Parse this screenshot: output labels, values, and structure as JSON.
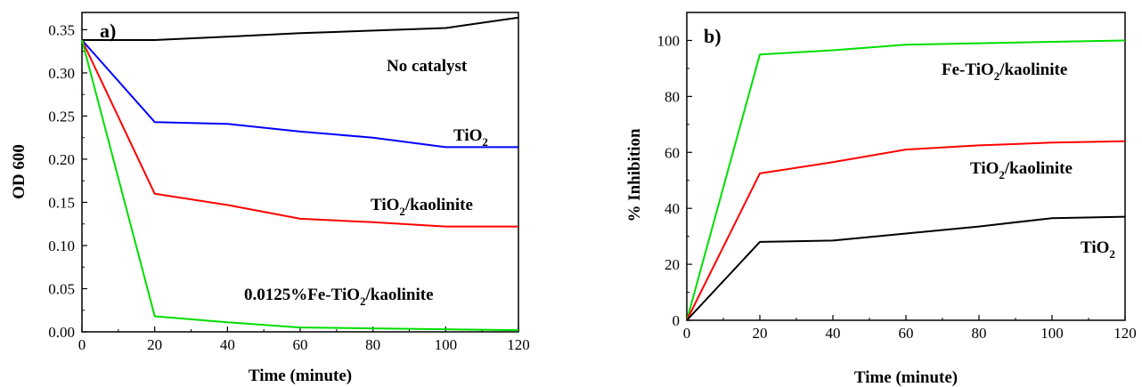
{
  "chart_data": [
    {
      "type": "line",
      "panel_label": "a)",
      "xlabel": "Time (minute)",
      "ylabel": "OD 600",
      "xlim": [
        0,
        120
      ],
      "ylim": [
        0,
        0.37
      ],
      "x_ticks": [
        "0",
        "20",
        "40",
        "60",
        "80",
        "100",
        "120"
      ],
      "y_ticks": [
        "0.00",
        "0.05",
        "0.10",
        "0.15",
        "0.20",
        "0.25",
        "0.30",
        "0.35"
      ],
      "grid": false,
      "series": [
        {
          "name": "No catalyst",
          "color": "#000000",
          "points": [
            [
              0,
              0.338
            ],
            [
              20,
              0.338
            ],
            [
              40,
              0.342
            ],
            [
              60,
              0.346
            ],
            [
              80,
              0.349
            ],
            [
              100,
              0.352
            ],
            [
              120,
              0.364
            ]
          ]
        },
        {
          "name": "TiO2",
          "color": "#0000ff",
          "points": [
            [
              0,
              0.338
            ],
            [
              20,
              0.243
            ],
            [
              40,
              0.241
            ],
            [
              60,
              0.232
            ],
            [
              80,
              0.225
            ],
            [
              100,
              0.214
            ],
            [
              120,
              0.214
            ]
          ]
        },
        {
          "name": "TiO2/kaolinite",
          "color": "#ff0000",
          "points": [
            [
              0,
              0.338
            ],
            [
              20,
              0.16
            ],
            [
              40,
              0.147
            ],
            [
              60,
              0.131
            ],
            [
              80,
              0.127
            ],
            [
              100,
              0.122
            ],
            [
              120,
              0.122
            ]
          ]
        },
        {
          "name": "0.0125%Fe-TiO2/kaolinite",
          "color": "#00dd00",
          "points": [
            [
              0,
              0.338
            ],
            [
              20,
              0.018
            ],
            [
              40,
              0.011
            ],
            [
              60,
              0.005
            ],
            [
              80,
              0.004
            ],
            [
              100,
              0.003
            ],
            [
              120,
              0.002
            ]
          ]
        }
      ],
      "annotations": {
        "no_catalyst": "No catalyst",
        "tio2_main": "TiO",
        "tio2_sub": "2",
        "kao_pre": "TiO",
        "kao_sub": "2",
        "kao_post": "/kaolinite",
        "fe_pre": "0.0125%Fe-TiO",
        "fe_sub": "2",
        "fe_post": "/kaolinite"
      }
    },
    {
      "type": "line",
      "panel_label": "b)",
      "xlabel": "Time (minute)",
      "ylabel": "% Inhibition",
      "xlim": [
        0,
        120
      ],
      "ylim": [
        0,
        110
      ],
      "x_ticks": [
        "0",
        "20",
        "40",
        "60",
        "80",
        "100",
        "120"
      ],
      "y_ticks": [
        "0",
        "20",
        "40",
        "60",
        "80",
        "100"
      ],
      "grid": false,
      "series": [
        {
          "name": "Fe-TiO2/kaolinite",
          "color": "#00dd00",
          "points": [
            [
              0,
              0
            ],
            [
              20,
              95
            ],
            [
              40,
              96.5
            ],
            [
              60,
              98.5
            ],
            [
              80,
              99
            ],
            [
              100,
              99.5
            ],
            [
              120,
              100
            ]
          ]
        },
        {
          "name": "TiO2/kaolinite",
          "color": "#ff0000",
          "points": [
            [
              0,
              0
            ],
            [
              20,
              52.5
            ],
            [
              40,
              56.5
            ],
            [
              60,
              61
            ],
            [
              80,
              62.5
            ],
            [
              100,
              63.5
            ],
            [
              120,
              64
            ]
          ]
        },
        {
          "name": "TiO2",
          "color": "#000000",
          "points": [
            [
              0,
              0
            ],
            [
              20,
              28
            ],
            [
              40,
              28.5
            ],
            [
              60,
              31
            ],
            [
              80,
              33.5
            ],
            [
              100,
              36.5
            ],
            [
              120,
              37
            ]
          ]
        }
      ],
      "annotations": {
        "fe_pre": "Fe-TiO",
        "fe_sub": "2",
        "fe_post": "/kaolinite",
        "kao_pre": "TiO",
        "kao_sub": "2",
        "kao_post": "/kaolinite",
        "tio2_main": "TiO",
        "tio2_sub": "2"
      }
    }
  ]
}
